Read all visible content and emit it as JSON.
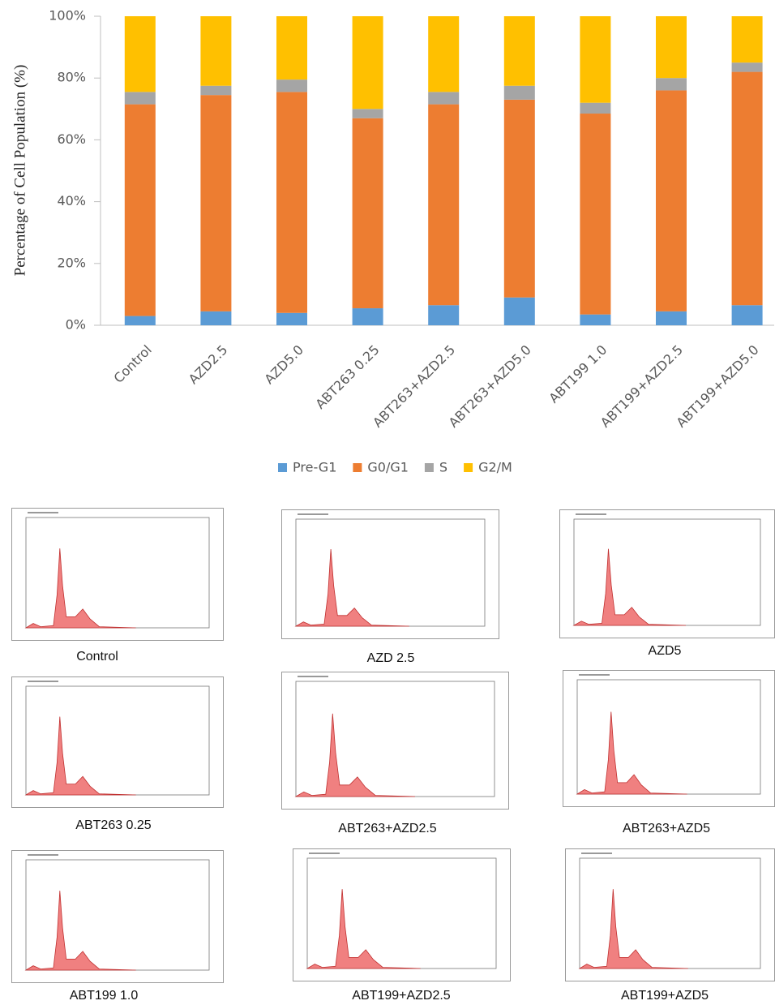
{
  "chart_data": {
    "type": "stacked_bar",
    "y_label": "Percentage of Cell Population (%)",
    "categories": [
      "Control",
      "AZD2.5",
      "AZD5.0",
      "ABT263 0.25",
      "ABT263+AZD2.5",
      "ABT263+AZD5.0",
      "ABT199 1.0",
      "ABT199+AZD2.5",
      "ABT199+AZD5.0"
    ],
    "series": [
      {
        "name": "Pre-G1",
        "color": "#5b9bd5",
        "values": [
          3,
          4.5,
          4,
          5.5,
          6.5,
          9,
          3.5,
          4.5,
          6.5
        ]
      },
      {
        "name": "G0/G1",
        "color": "#ed7d31",
        "values": [
          68.5,
          70,
          71.5,
          61.5,
          65,
          64,
          65,
          71.5,
          75.5
        ]
      },
      {
        "name": "S",
        "color": "#a5a5a5",
        "values": [
          4,
          3,
          4,
          3,
          4,
          4.5,
          3.5,
          4,
          3
        ]
      },
      {
        "name": "G2/M",
        "color": "#ffc000",
        "values": [
          24.5,
          22.5,
          20.5,
          30,
          24.5,
          22.5,
          28,
          20,
          15
        ]
      }
    ],
    "ylim": [
      0,
      100
    ],
    "yticks": [
      {
        "value": 0,
        "label": "0%"
      },
      {
        "value": 20,
        "label": "20%"
      },
      {
        "value": 40,
        "label": "40%"
      },
      {
        "value": 60,
        "label": "60%"
      },
      {
        "value": 80,
        "label": "80%"
      },
      {
        "value": 100,
        "label": "100%"
      }
    ],
    "legend": "bottom"
  },
  "panels": [
    {
      "label": "Control"
    },
    {
      "label": "AZD 2.5"
    },
    {
      "label": "AZD5"
    },
    {
      "label": "ABT263 0.25"
    },
    {
      "label": "ABT263+AZD2.5"
    },
    {
      "label": "ABT263+AZD5"
    },
    {
      "label": "ABT199 1.0"
    },
    {
      "label": "ABT199+AZD2.5"
    },
    {
      "label": "ABT199+AZD5"
    }
  ]
}
